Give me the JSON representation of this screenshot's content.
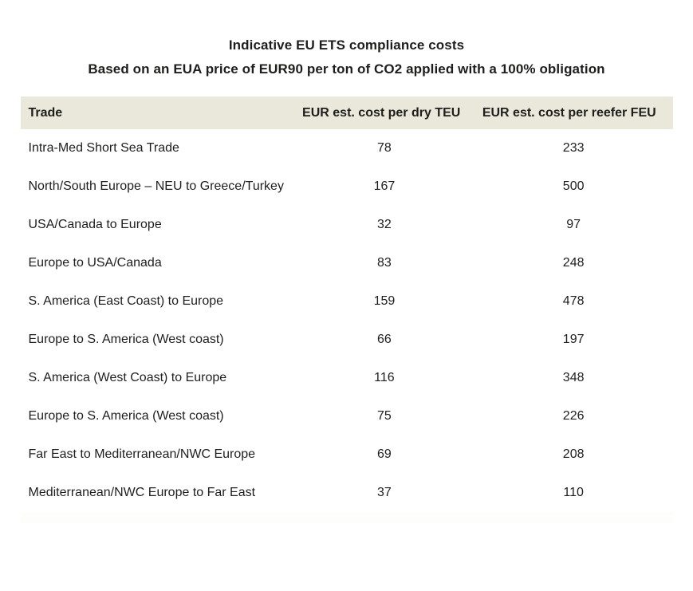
{
  "title": "Indicative EU ETS compliance costs",
  "subtitle": "Based on an EUA price of EUR90 per ton of CO2 applied with a 100% obligation",
  "table": {
    "columns": [
      "Trade",
      "EUR est. cost per dry TEU",
      "EUR est. cost per reefer FEU"
    ],
    "rows": [
      [
        "Intra-Med Short Sea Trade",
        "78",
        "233"
      ],
      [
        "North/South Europe – NEU to Greece/Turkey",
        "167",
        "500"
      ],
      [
        "USA/Canada to Europe",
        "32",
        "97"
      ],
      [
        "Europe to USA/Canada",
        "83",
        "248"
      ],
      [
        "S. America (East Coast) to Europe",
        "159",
        "478"
      ],
      [
        "Europe to S. America (West coast)",
        "66",
        "197"
      ],
      [
        "S. America (West Coast) to Europe",
        "116",
        "348"
      ],
      [
        "Europe to S. America (West coast)",
        "75",
        "226"
      ],
      [
        "Far East to Mediterranean/NWC Europe",
        "69",
        "208"
      ],
      [
        "Mediterranean/NWC Europe to Far East",
        "37",
        "110"
      ]
    ]
  },
  "chart_data": {
    "type": "table",
    "title": "Indicative EU ETS compliance costs",
    "subtitle": "Based on an EUA price of EUR90 per ton of CO2 applied with a 100% obligation",
    "columns": [
      "Trade",
      "EUR est. cost per dry TEU",
      "EUR est. cost per reefer FEU"
    ],
    "rows": [
      {
        "trade": "Intra-Med Short Sea Trade",
        "cost_dry_teu": 78,
        "cost_reefer_feu": 233
      },
      {
        "trade": "North/South Europe – NEU to Greece/Turkey",
        "cost_dry_teu": 167,
        "cost_reefer_feu": 500
      },
      {
        "trade": "USA/Canada to Europe",
        "cost_dry_teu": 32,
        "cost_reefer_feu": 97
      },
      {
        "trade": "Europe to USA/Canada",
        "cost_dry_teu": 83,
        "cost_reefer_feu": 248
      },
      {
        "trade": "S. America (East Coast) to Europe",
        "cost_dry_teu": 159,
        "cost_reefer_feu": 478
      },
      {
        "trade": "Europe to S. America (West coast)",
        "cost_dry_teu": 66,
        "cost_reefer_feu": 197
      },
      {
        "trade": "S. America (West Coast) to Europe",
        "cost_dry_teu": 116,
        "cost_reefer_feu": 348
      },
      {
        "trade": "Europe to S. America (West coast)",
        "cost_dry_teu": 75,
        "cost_reefer_feu": 226
      },
      {
        "trade": "Far East to Mediterranean/NWC Europe",
        "cost_dry_teu": 69,
        "cost_reefer_feu": 208
      },
      {
        "trade": "Mediterranean/NWC Europe to Far East",
        "cost_dry_teu": 37,
        "cost_reefer_feu": 110
      }
    ]
  },
  "colors": {
    "header_background": "#eae8db",
    "text": "#1e1e1c",
    "page_background": "#ffffff"
  }
}
